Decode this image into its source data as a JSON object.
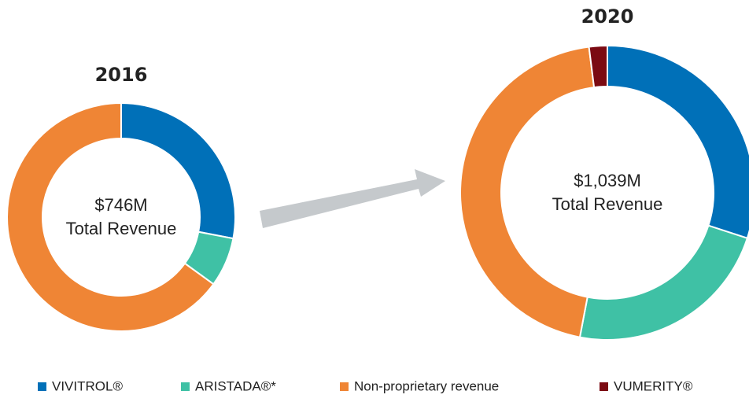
{
  "chart_data": [
    {
      "type": "donut",
      "title": "2016",
      "center_text": [
        "$746M",
        "Total Revenue"
      ],
      "values": [
        28,
        7,
        65,
        0
      ]
    },
    {
      "type": "donut",
      "title": "2020",
      "center_text": [
        "$1,039M",
        "Total Revenue"
      ],
      "categories": [
        "VIVITROL®",
        "ARISTADA®*",
        "Non-proprietary revenue",
        "VUMERITY®"
      ],
      "colors": [
        "#0070b8",
        "#3fc1a5",
        "#ef8535",
        "#7b0a12"
      ],
      "values": [
        30,
        23,
        45,
        2
      ]
    }
  ]
}
